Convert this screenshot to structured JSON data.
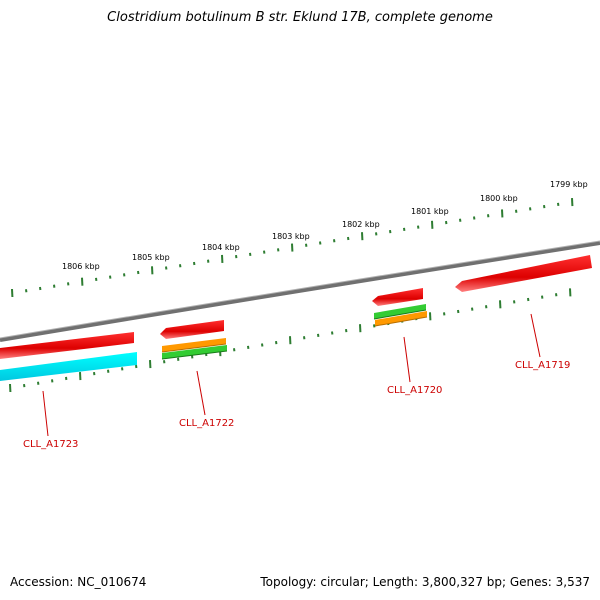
{
  "title": "Clostridium botulinum B str. Eklund 17B, complete genome",
  "footer": {
    "accession": "Accession: NC_010674",
    "summary": "Topology: circular; Length: 3,800,327 bp; Genes: 3,537"
  },
  "kbp_labels": [
    "1806 kbp",
    "1805 kbp",
    "1804 kbp",
    "1803 kbp",
    "1802 kbp",
    "1801 kbp",
    "1800 kbp",
    "1799 kbp"
  ],
  "gene_labels": [
    "CLL_A1723",
    "CLL_A1722",
    "CLL_A1720",
    "CLL_A1719"
  ],
  "colors": {
    "backbone": "#808080",
    "ticks": "#2e7d32",
    "gene_forward": "#e00000",
    "gene_label": "#cc0000",
    "cyan_feature": "#00e5ff",
    "orange_feature": "#ff9900",
    "green_feature": "#33cc33"
  }
}
